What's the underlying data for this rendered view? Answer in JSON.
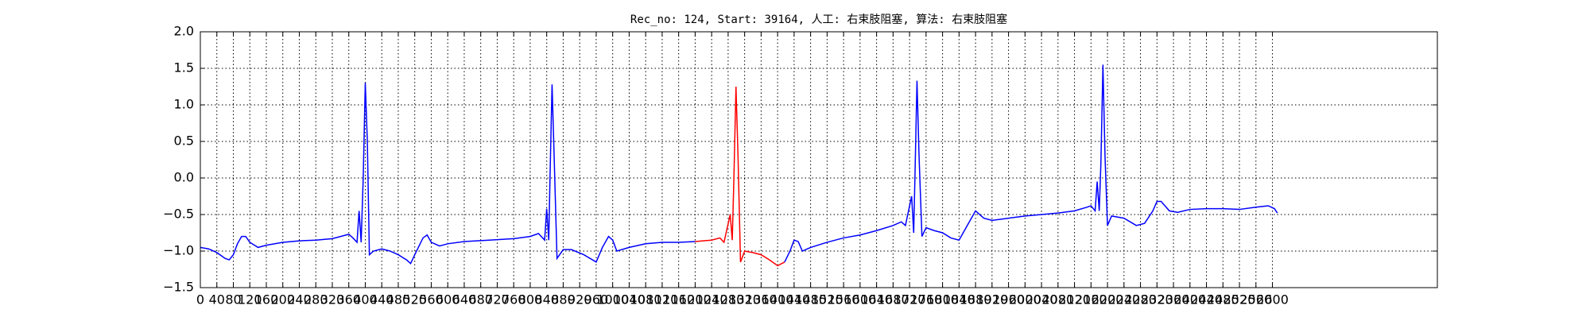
{
  "chart_data": {
    "type": "line",
    "title": "Rec_no: 124, Start: 39164, 人工: 右束肢阻塞, 算法: 右束肢阻塞",
    "xlim": [
      0,
      3000
    ],
    "ylim": [
      -1.5,
      2.0
    ],
    "xticks": [
      0,
      40,
      80,
      120,
      160,
      200,
      240,
      280,
      320,
      360,
      400,
      440,
      480,
      520,
      560,
      600,
      640,
      680,
      720,
      760,
      800,
      840,
      880,
      920,
      960,
      1000,
      1040,
      1080,
      1120,
      1160,
      1200,
      1240,
      1280,
      1320,
      1360,
      1400,
      1440,
      1480,
      1520,
      1560,
      1600,
      1640,
      1680,
      1720,
      1760,
      1800,
      1840,
      1880,
      1920,
      1960,
      2000,
      2040,
      2080,
      2120,
      2160,
      2200,
      2240,
      2280,
      2320,
      2360,
      2400,
      2440,
      2480,
      2520,
      2560,
      2600
    ],
    "yticks": [
      {
        "value": -1.5,
        "label": "−1.5"
      },
      {
        "value": -1.0,
        "label": "−1.0"
      },
      {
        "value": -0.5,
        "label": "−0.5"
      },
      {
        "value": 0.0,
        "label": "0.0"
      },
      {
        "value": 0.5,
        "label": "0.5"
      },
      {
        "value": 1.0,
        "label": "1.0"
      },
      {
        "value": 1.5,
        "label": "1.5"
      },
      {
        "value": 2.0,
        "label": "2.0"
      }
    ],
    "grid": true,
    "series": [
      {
        "color": "#0000ff",
        "x": [
          0,
          20,
          40,
          60,
          70,
          80,
          90,
          100,
          110,
          120,
          140,
          160,
          200,
          240,
          280,
          320,
          340,
          360,
          370,
          380,
          385,
          390,
          395,
          400,
          405,
          410,
          420,
          440,
          460,
          480,
          500,
          510,
          520,
          540,
          550,
          560,
          580,
          600,
          640,
          700,
          760,
          800,
          820,
          835,
          840,
          845,
          848,
          853,
          858,
          865,
          880,
          900,
          930,
          960,
          975,
          990,
          1000,
          1010,
          1040,
          1080,
          1120,
          1160,
          1200
        ],
        "values": [
          -0.95,
          -0.97,
          -1.02,
          -1.1,
          -1.12,
          -1.05,
          -0.9,
          -0.8,
          -0.8,
          -0.88,
          -0.95,
          -0.92,
          -0.88,
          -0.86,
          -0.85,
          -0.83,
          -0.8,
          -0.77,
          -0.82,
          -0.88,
          -0.45,
          -0.88,
          0.0,
          1.3,
          0.5,
          -1.05,
          -1.0,
          -0.97,
          -1.0,
          -1.05,
          -1.12,
          -1.17,
          -1.05,
          -0.82,
          -0.78,
          -0.88,
          -0.93,
          -0.9,
          -0.87,
          -0.85,
          -0.83,
          -0.8,
          -0.76,
          -0.85,
          -0.42,
          -0.85,
          0.0,
          1.28,
          0.3,
          -1.1,
          -0.98,
          -0.98,
          -1.05,
          -1.15,
          -0.95,
          -0.8,
          -0.85,
          -1.0,
          -0.95,
          -0.9,
          -0.88,
          -0.88,
          -0.87
        ]
      },
      {
        "color": "#ff0000",
        "x": [
          1200,
          1240,
          1260,
          1270,
          1285,
          1290,
          1294,
          1299,
          1304,
          1310,
          1320,
          1340,
          1360,
          1380,
          1400,
          1417
        ],
        "values": [
          -0.87,
          -0.85,
          -0.82,
          -0.88,
          -0.5,
          -0.85,
          0.0,
          1.25,
          0.3,
          -1.15,
          -1.0,
          -1.02,
          -1.05,
          -1.12,
          -1.2,
          -1.15
        ]
      },
      {
        "color": "#0000ff",
        "x": [
          1417,
          1430,
          1440,
          1450,
          1460,
          1480,
          1520,
          1560,
          1600,
          1640,
          1680,
          1700,
          1710,
          1725,
          1730,
          1733,
          1738,
          1743,
          1750,
          1760,
          1780,
          1800,
          1820,
          1840,
          1860,
          1880,
          1900,
          1920,
          1960,
          2000,
          2040,
          2080,
          2120,
          2150,
          2160,
          2170,
          2175,
          2180,
          2184,
          2189,
          2194,
          2200,
          2210,
          2240,
          2270,
          2290,
          2310,
          2320,
          2330,
          2350,
          2370,
          2400,
          2440,
          2480,
          2520,
          2560,
          2590,
          2605,
          2612
        ],
        "values": [
          -1.15,
          -1.0,
          -0.85,
          -0.87,
          -1.0,
          -0.95,
          -0.88,
          -0.82,
          -0.78,
          -0.72,
          -0.65,
          -0.6,
          -0.65,
          -0.25,
          -0.75,
          0.0,
          1.33,
          0.3,
          -0.8,
          -0.68,
          -0.72,
          -0.75,
          -0.82,
          -0.85,
          -0.65,
          -0.45,
          -0.55,
          -0.58,
          -0.55,
          -0.52,
          -0.5,
          -0.48,
          -0.45,
          -0.4,
          -0.38,
          -0.45,
          -0.05,
          -0.45,
          0.2,
          1.55,
          0.3,
          -0.65,
          -0.52,
          -0.55,
          -0.65,
          -0.62,
          -0.45,
          -0.32,
          -0.32,
          -0.45,
          -0.47,
          -0.43,
          -0.42,
          -0.42,
          -0.43,
          -0.4,
          -0.38,
          -0.42,
          -0.48
        ]
      }
    ]
  }
}
